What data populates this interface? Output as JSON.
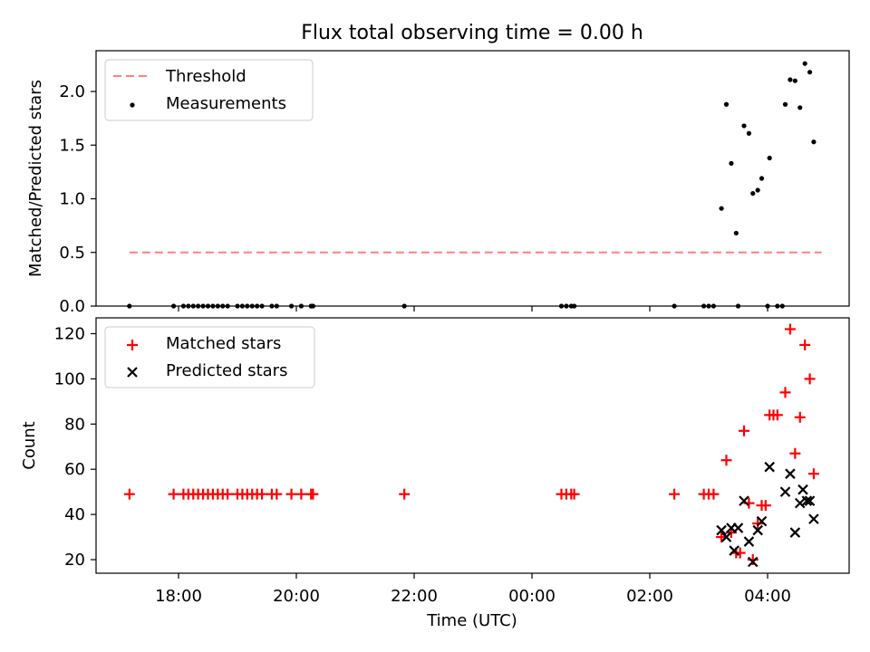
{
  "title": "Flux total observing time = 0.00 h",
  "colors": {
    "threshold": "#ff7f7f",
    "measurements": "#000000",
    "matched": "#ff0000",
    "predicted": "#000000"
  },
  "chart_data": [
    {
      "type": "scatter",
      "ylabel": "Matched/Predicted stars",
      "ylim": [
        0,
        2.38
      ],
      "yticks": [
        "0.0",
        "0.5",
        "1.0",
        "1.5",
        "2.0"
      ],
      "grid": false,
      "legend": {
        "placement": "upper-left",
        "entries": [
          "Threshold",
          "Measurements"
        ]
      },
      "threshold": {
        "name": "Threshold",
        "y": 0.5,
        "x": [
          "17:10",
          "04:55"
        ]
      },
      "series": [
        {
          "name": "Measurements",
          "points": [
            [
              "17:10",
              0
            ],
            [
              "17:55",
              0
            ],
            [
              "18:05",
              0
            ],
            [
              "18:10",
              0
            ],
            [
              "18:15",
              0
            ],
            [
              "18:20",
              0
            ],
            [
              "18:25",
              0
            ],
            [
              "18:30",
              0
            ],
            [
              "18:35",
              0
            ],
            [
              "18:40",
              0
            ],
            [
              "18:45",
              0
            ],
            [
              "18:50",
              0
            ],
            [
              "19:00",
              0
            ],
            [
              "19:05",
              0
            ],
            [
              "19:10",
              0
            ],
            [
              "19:15",
              0
            ],
            [
              "19:20",
              0
            ],
            [
              "19:25",
              0
            ],
            [
              "19:35",
              0
            ],
            [
              "19:40",
              0
            ],
            [
              "19:55",
              0
            ],
            [
              "20:05",
              0
            ],
            [
              "20:15",
              0
            ],
            [
              "20:17",
              0
            ],
            [
              "21:50",
              0
            ],
            [
              "00:30",
              0
            ],
            [
              "00:35",
              0
            ],
            [
              "00:40",
              0
            ],
            [
              "00:43",
              0
            ],
            [
              "02:25",
              0
            ],
            [
              "02:55",
              0
            ],
            [
              "03:00",
              0
            ],
            [
              "03:05",
              0
            ],
            [
              "03:30",
              0
            ],
            [
              "04:00",
              0
            ],
            [
              "04:10",
              0
            ],
            [
              "04:15",
              0
            ],
            [
              "03:13",
              0.91
            ],
            [
              "03:18",
              1.88
            ],
            [
              "03:23",
              1.33
            ],
            [
              "03:28",
              0.68
            ],
            [
              "03:36",
              1.68
            ],
            [
              "03:41",
              1.61
            ],
            [
              "03:45",
              1.05
            ],
            [
              "03:50",
              1.08
            ],
            [
              "03:54",
              1.19
            ],
            [
              "04:02",
              1.38
            ],
            [
              "04:18",
              1.88
            ],
            [
              "04:23",
              2.11
            ],
            [
              "04:28",
              2.1
            ],
            [
              "04:33",
              1.85
            ],
            [
              "04:38",
              2.26
            ],
            [
              "04:43",
              2.18
            ],
            [
              "04:47",
              1.53
            ]
          ]
        }
      ]
    },
    {
      "type": "scatter",
      "xlabel": "Time (UTC)",
      "ylabel": "Count",
      "ylim": [
        14,
        127
      ],
      "yticks": [
        "20",
        "40",
        "60",
        "80",
        "100",
        "120"
      ],
      "xticks": [
        "18:00",
        "20:00",
        "22:00",
        "00:00",
        "02:00",
        "04:00"
      ],
      "grid": false,
      "legend": {
        "placement": "upper-left",
        "entries": [
          "Matched stars",
          "Predicted stars"
        ]
      },
      "series": [
        {
          "name": "Matched stars",
          "marker": "plus",
          "points": [
            [
              "17:10",
              49
            ],
            [
              "17:55",
              49
            ],
            [
              "18:05",
              49
            ],
            [
              "18:10",
              49
            ],
            [
              "18:15",
              49
            ],
            [
              "18:20",
              49
            ],
            [
              "18:25",
              49
            ],
            [
              "18:30",
              49
            ],
            [
              "18:35",
              49
            ],
            [
              "18:40",
              49
            ],
            [
              "18:45",
              49
            ],
            [
              "18:50",
              49
            ],
            [
              "19:00",
              49
            ],
            [
              "19:05",
              49
            ],
            [
              "19:10",
              49
            ],
            [
              "19:15",
              49
            ],
            [
              "19:20",
              49
            ],
            [
              "19:25",
              49
            ],
            [
              "19:35",
              49
            ],
            [
              "19:40",
              49
            ],
            [
              "19:55",
              49
            ],
            [
              "20:05",
              49
            ],
            [
              "20:15",
              49
            ],
            [
              "20:17",
              49
            ],
            [
              "21:50",
              49
            ],
            [
              "00:30",
              49
            ],
            [
              "00:35",
              49
            ],
            [
              "00:40",
              49
            ],
            [
              "00:43",
              49
            ],
            [
              "02:25",
              49
            ],
            [
              "02:55",
              49
            ],
            [
              "03:00",
              49
            ],
            [
              "03:05",
              49
            ],
            [
              "03:13",
              30
            ],
            [
              "03:18",
              64
            ],
            [
              "03:23",
              32
            ],
            [
              "03:28",
              23
            ],
            [
              "03:32",
              23
            ],
            [
              "03:36",
              77
            ],
            [
              "03:41",
              45
            ],
            [
              "03:45",
              20
            ],
            [
              "03:50",
              36
            ],
            [
              "03:54",
              44
            ],
            [
              "03:58",
              44
            ],
            [
              "04:02",
              84
            ],
            [
              "04:06",
              84
            ],
            [
              "04:10",
              84
            ],
            [
              "04:18",
              94
            ],
            [
              "04:23",
              122
            ],
            [
              "04:28",
              67
            ],
            [
              "04:33",
              83
            ],
            [
              "04:38",
              115
            ],
            [
              "04:43",
              100
            ],
            [
              "04:47",
              58
            ]
          ]
        },
        {
          "name": "Predicted stars",
          "marker": "x",
          "points": [
            [
              "03:13",
              33
            ],
            [
              "03:18",
              30
            ],
            [
              "03:23",
              34
            ],
            [
              "03:26",
              24
            ],
            [
              "03:30",
              34
            ],
            [
              "03:36",
              46
            ],
            [
              "03:41",
              28
            ],
            [
              "03:45",
              19
            ],
            [
              "03:50",
              33
            ],
            [
              "03:54",
              37
            ],
            [
              "04:02",
              61
            ],
            [
              "04:18",
              50
            ],
            [
              "04:23",
              58
            ],
            [
              "04:28",
              32
            ],
            [
              "04:33",
              45
            ],
            [
              "04:36",
              51
            ],
            [
              "04:40",
              46
            ],
            [
              "04:43",
              46
            ],
            [
              "04:47",
              38
            ]
          ]
        }
      ]
    }
  ]
}
